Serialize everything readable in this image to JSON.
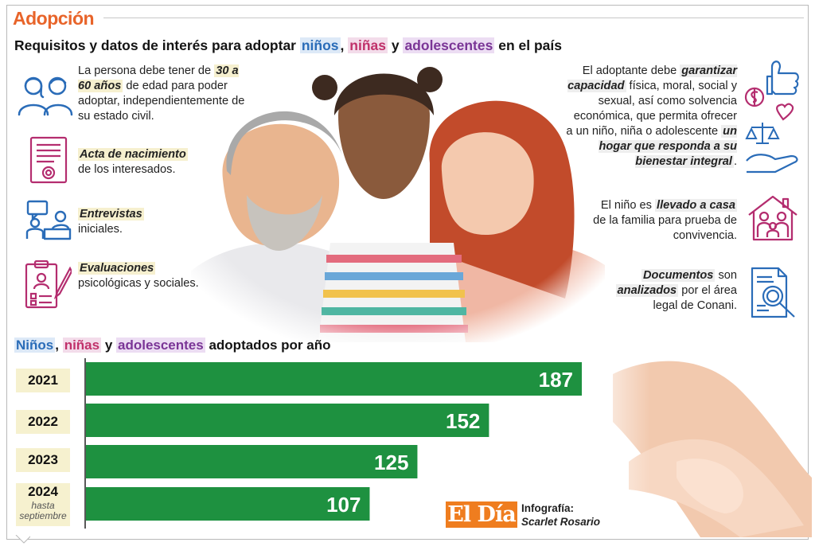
{
  "header": {
    "kicker": "Adopción",
    "subtitle_start": "Requisitos y datos de interés para adoptar ",
    "subtitle_ninos": "niños",
    "subtitle_sep": ", ",
    "subtitle_ninas": "niñas",
    "subtitle_y": " y ",
    "subtitle_adol": "adolescentes",
    "subtitle_end": " en el país"
  },
  "requirements_left": [
    {
      "icon": "couple-icon",
      "pre": "La persona debe tener de ",
      "emph": "30 a 60 años",
      "post": " de edad para poder adoptar, independientemente de su estado civil."
    },
    {
      "icon": "birth-certificate-icon",
      "emph": "Acta de nacimiento",
      "post": "de los interesados."
    },
    {
      "icon": "interview-icon",
      "emph": "Entrevistas",
      "post": "iniciales."
    },
    {
      "icon": "evaluation-clipboard-icon",
      "emph": "Evaluaciones",
      "post": "psicológicas y sociales."
    }
  ],
  "requirements_right": [
    {
      "icon": "thumbs-money-heart-scale-hand-icon",
      "pre": "El adoptante debe ",
      "emph1": "garantizar capacidad",
      "mid": " física, moral, social y sexual, así como solvencia económica, que permita ofrecer a un niño, niña o adolescente ",
      "emph2": "un hogar que responda a su bienestar integral",
      "post": "."
    },
    {
      "icon": "family-house-icon",
      "pre": "El niño es ",
      "emph": "llevado a casa",
      "post": " de la familia para prueba de convivencia."
    },
    {
      "icon": "document-review-icon",
      "emph": "Documentos",
      "mid": " son ",
      "emph2": "analizados",
      "post": " por el área legal de Conani."
    }
  ],
  "chart_data": {
    "type": "bar",
    "orientation": "horizontal",
    "title_parts": [
      "Niños",
      ", ",
      "niñas",
      " y ",
      "adolescentes",
      " adoptados por año"
    ],
    "categories": [
      "2021",
      "2022",
      "2023",
      "2024"
    ],
    "category_notes": [
      "",
      "",
      "",
      "hasta septiembre"
    ],
    "values": [
      187,
      152,
      125,
      107
    ],
    "xlim": [
      0,
      187
    ],
    "bar_color": "#1e9140",
    "data_labels": true,
    "grid": false
  },
  "footer": {
    "brand": "El Día",
    "credit_label": "Infografía:",
    "credit_name": "Scarlet Rosario"
  }
}
